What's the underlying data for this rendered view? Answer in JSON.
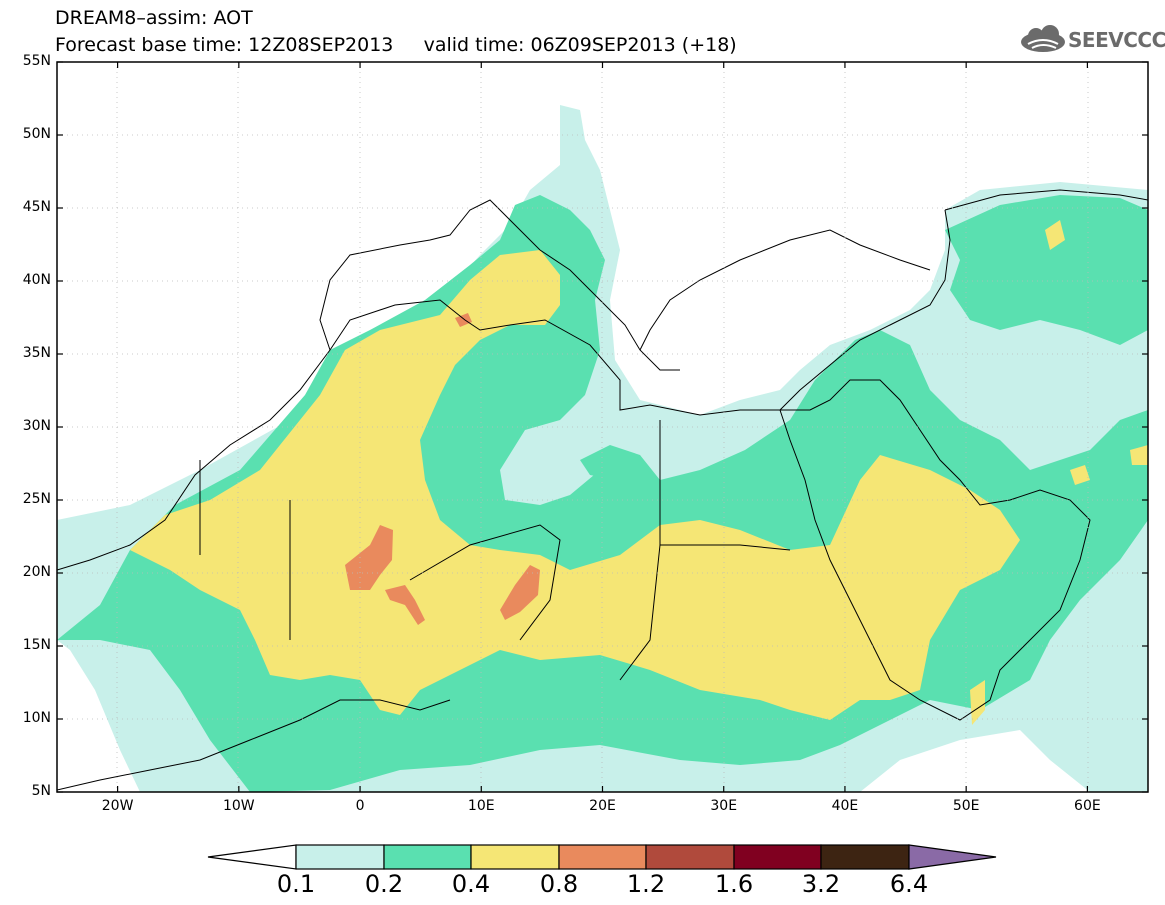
{
  "title": {
    "line1": "DREAM8–assim: AOT",
    "line2": "Forecast base time: 12Z08SEP2013     valid time: 06Z09SEP2013 (+18)"
  },
  "logo": {
    "text": "SEEVCCC",
    "icon": "cloud-icon"
  },
  "map": {
    "lon_range": [
      -25,
      65
    ],
    "lat_range": [
      5,
      55
    ],
    "lat_ticks": [
      "5N",
      "10N",
      "15N",
      "20N",
      "25N",
      "30N",
      "35N",
      "40N",
      "45N",
      "50N",
      "55N"
    ],
    "lon_ticks": [
      "20W",
      "10W",
      "0",
      "10E",
      "20E",
      "30E",
      "40E",
      "50E",
      "60E"
    ]
  },
  "colorbar": {
    "labels": [
      "0.1",
      "0.2",
      "0.4",
      "0.8",
      "1.2",
      "1.6",
      "3.2",
      "6.4"
    ],
    "colors": [
      "#ffffff",
      "#c8f0ea",
      "#5ae0b0",
      "#f5e675",
      "#e98a5d",
      "#b04a3c",
      "#800020",
      "#3d2412",
      "#8a6aa6"
    ]
  }
}
